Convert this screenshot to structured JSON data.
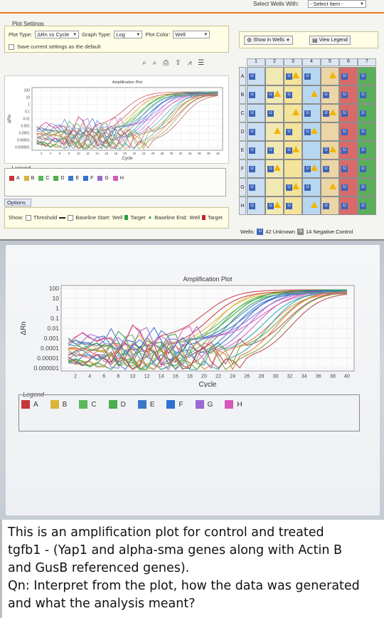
{
  "top": {
    "section_title": "Plot Settings",
    "select_wells_label": "Select Wells With:",
    "select_item": "- Select Item -",
    "plot_type_label": "Plot Type:",
    "plot_type_value": "ΔRn vs Cycle",
    "graph_type_label": "Graph Type:",
    "graph_type_value": "Log",
    "plot_color_label": "Plot Color:",
    "plot_color_value": "Well",
    "save_settings": "Save current settings as the default",
    "toolbar_icons": [
      "zoom-in-icon",
      "zoom-out-icon",
      "print-icon",
      "export-icon",
      "chart-icon",
      "list-icon"
    ],
    "chart_title": "Amplification Plot",
    "y_ticks": [
      "100",
      "10",
      "1",
      "0.1",
      "0.01",
      "0.001",
      "0.0001",
      "0.00001",
      "0.000001"
    ],
    "x_label": "Cycle",
    "y_label": "ΔRn",
    "legend_title": "Legend",
    "legend_items": [
      "A",
      "B",
      "C",
      "D",
      "E",
      "F",
      "G",
      "H"
    ],
    "options_tab": "Options",
    "show_label": "Show:",
    "threshold": "Threshold",
    "baseline_start": "Baseline Start:",
    "well": "Well",
    "target": "Target",
    "baseline_end": "Baseline End:",
    "show_in_wells": "Show in Wells",
    "view_legend": "View Legend",
    "plate_cols": [
      "1",
      "2",
      "3",
      "4",
      "5",
      "6",
      "7"
    ],
    "plate_rows": [
      "A",
      "B",
      "C",
      "D",
      "E",
      "F",
      "G",
      "H"
    ],
    "wells_label": "Wells:",
    "unknown_count": "42 Unknown",
    "negative_count": "14 Negative Control",
    "tag_unknown": "U",
    "tag_negative": "N"
  },
  "photo": {
    "chart_title": "Amplification Plot",
    "y_ticks": [
      "100",
      "10",
      "1",
      "0.1",
      "0.01",
      "0.001",
      "0.0001",
      "0.00001",
      "0.000001"
    ],
    "y_label": "ΔRn",
    "x_ticks": [
      "2",
      "4",
      "6",
      "8",
      "10",
      "12",
      "14",
      "16",
      "18",
      "20",
      "22",
      "24",
      "26",
      "28",
      "30",
      "32",
      "34",
      "36",
      "38",
      "40"
    ],
    "x_label": "Cycle",
    "legend_title": "Legend",
    "legend_items": [
      "A",
      "B",
      "C",
      "D",
      "E",
      "F",
      "G",
      "H"
    ]
  },
  "colors": {
    "A": "#c8363a",
    "B": "#d9b43a",
    "C": "#5cb85c",
    "D": "#4cae4c",
    "E": "#3c78c8",
    "F": "#2f6fd0",
    "G": "#9a6ad0",
    "H": "#d45ab8",
    "accent": "#f07a17"
  },
  "question": {
    "lines": [
      "This is an amplification plot for control and treated",
      "tgfb1 - (Yap1 and alpha-sma genes along with Actin B",
      "and GusB referenced genes).",
      "Qn: Interpret from the plot, how the data was generated",
      "and what the analysis meant?"
    ]
  }
}
